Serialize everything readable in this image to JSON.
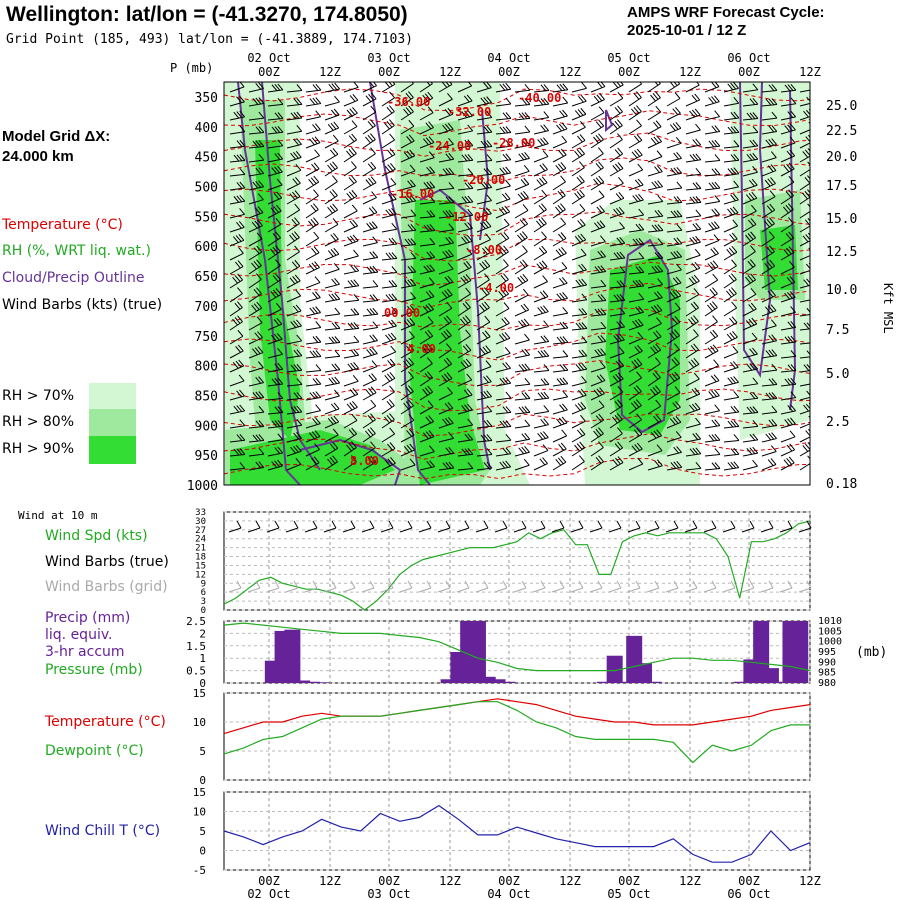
{
  "header": {
    "title": "Wellington:  lat/lon = (-41.3270, 174.8050)",
    "grid_point": "Grid Point (185, 493) lat/lon = (-41.3889, 174.7103)",
    "cycle_line1": "AMPS WRF Forecast Cycle:",
    "cycle_line2": "2025-10-01 / 12  Z"
  },
  "legend": {
    "model_grid_label": "Model Grid ΔX:",
    "model_grid_value": " 24.000 km",
    "temperature": "Temperature (°C)",
    "rh": "RH (%, WRT liq. wat.)",
    "cloud": "Cloud/Precip Outline",
    "wind_barbs": "Wind Barbs (kts) (true)",
    "rh70": "RH > 70%",
    "rh80": "RH > 80%",
    "rh90": "RH > 90%"
  },
  "time_axis": {
    "hours": [
      "00Z",
      "12Z",
      "00Z",
      "12Z",
      "00Z",
      "12Z",
      "00Z",
      "12Z",
      "00Z",
      "12Z"
    ],
    "dates": [
      "02 Oct",
      "03 Oct",
      "04 Oct",
      "05 Oct",
      "06 Oct"
    ]
  },
  "panels": {
    "p_label": "P (mb)",
    "kft_label": "Kft MSL",
    "wind10_title": "Wind at 10 m",
    "wind_spd": "Wind Spd (kts)",
    "wind_barbs_true": "Wind Barbs (true)",
    "wind_barbs_grid": "Wind Barbs (grid)",
    "precip_1": "Precip (mm)",
    "precip_2": "liq. equiv.",
    "precip_3": "3-hr accum",
    "pressure": "Pressure (mb)",
    "mb_unit": "(mb)",
    "temperature": "Temperature (°C)",
    "dewpoint": "Dewpoint (°C)",
    "wind_chill": "Wind Chill T (°C)"
  },
  "colors": {
    "rh70": "#d2f7d2",
    "rh80": "#9ee99e",
    "rh90": "#33dd33",
    "temp": "#dd0000",
    "cloud": "#663399",
    "green": "#22aa22",
    "precip": "#662299",
    "chill": "#2222aa",
    "grey": "#aaaaaa"
  },
  "chart_data": [
    {
      "type": "heatmap",
      "title": "Time-height cross section",
      "ylabel": "P (mb)",
      "y_ticks": [
        350,
        400,
        450,
        500,
        550,
        600,
        650,
        700,
        750,
        800,
        850,
        900,
        950,
        1000
      ],
      "y_right_label": "Kft MSL",
      "y_right_ticks": [
        "25.0",
        "22.5",
        "20.0",
        "17.5",
        "15.0",
        "12.5",
        "10.0",
        "7.5",
        "5.0",
        "2.5",
        "0.18"
      ],
      "isotherm_labels": [
        "-36.00",
        "-32.00",
        "-24.00",
        "-28.00",
        "-20.00",
        "-16.00",
        "-12.00",
        "-8.00",
        "-4.00",
        "00.00",
        "4.00",
        "8.00",
        "-40.00"
      ]
    },
    {
      "type": "line",
      "title": "Wind at 10 m",
      "ylabel": "Wind Spd (kts)",
      "y_ticks": [
        "33",
        "30",
        "27",
        "24",
        "21",
        "18",
        "15",
        "12",
        "9",
        "6",
        "3",
        "0"
      ],
      "ylim": [
        0,
        33
      ],
      "x_hours": [
        0,
        6,
        12,
        18,
        24,
        30,
        36,
        42,
        48,
        54,
        60,
        66,
        72,
        78,
        84,
        90,
        96,
        102,
        108,
        114,
        120,
        126,
        132,
        138,
        144,
        150,
        156,
        162,
        168,
        174,
        180,
        186,
        192,
        198,
        204,
        210,
        216,
        222,
        228,
        234,
        240,
        246,
        252,
        258,
        264,
        270,
        276,
        282,
        288,
        294,
        300
      ],
      "values": [
        2,
        4,
        7,
        10,
        11,
        9,
        8,
        7,
        7,
        6,
        5,
        3,
        0,
        3,
        7,
        12,
        15,
        17,
        18,
        19,
        20,
        21,
        21,
        21,
        22,
        23,
        26,
        24,
        26,
        27,
        22,
        22,
        12,
        12,
        23,
        25,
        26,
        25,
        26,
        26,
        26,
        26,
        24,
        18,
        4,
        23,
        23,
        24,
        26,
        29,
        30
      ]
    },
    {
      "type": "bar",
      "title": "Precip (mm) liq. equiv. 3-hr accum",
      "ylim": [
        0,
        2.5
      ],
      "y_ticks": [
        "2.5",
        "2",
        "1.5",
        "1",
        "0.5",
        "0"
      ],
      "x_hours": [
        15,
        18,
        21,
        24,
        27,
        30,
        69,
        72,
        75,
        78,
        81,
        84,
        87,
        117,
        120,
        123,
        126,
        129,
        132,
        159,
        162,
        165,
        168,
        171,
        174,
        177
      ],
      "values": [
        0.9,
        2.1,
        2.15,
        0.1,
        0.05,
        0.03,
        0.15,
        1.25,
        2.5,
        2.5,
        0.25,
        0.15,
        0.05,
        0.05,
        1.1,
        0.05,
        1.9,
        0.8,
        0.05,
        0.05,
        0.95,
        2.5,
        0.6,
        0.05,
        2.5,
        2.5
      ]
    },
    {
      "type": "line",
      "title": "Pressure (mb)",
      "y_ticks_right": [
        "1010",
        "1005",
        "1000",
        "995",
        "990",
        "985",
        "980"
      ],
      "ylim": [
        980,
        1010
      ],
      "x_hours": [
        0,
        6,
        12,
        18,
        24,
        30,
        36,
        42,
        48,
        54,
        60,
        66,
        72,
        78,
        84,
        90,
        96,
        102,
        108,
        114,
        120,
        126,
        132,
        138,
        144,
        150,
        156,
        162,
        168,
        174,
        180
      ],
      "values": [
        1008,
        1009,
        1008,
        1007,
        1006,
        1005,
        1004,
        1004,
        1004,
        1003,
        1002,
        1000,
        996,
        992,
        990,
        987,
        986,
        986,
        986,
        986,
        986,
        988,
        990,
        992,
        992,
        991,
        991,
        990,
        989,
        988,
        986
      ]
    },
    {
      "type": "line",
      "title": "Temperature / Dewpoint",
      "y_ticks": [
        "15",
        "10",
        "5",
        "0"
      ],
      "ylim": [
        0,
        15
      ],
      "x_hours": [
        0,
        6,
        12,
        18,
        24,
        30,
        36,
        42,
        48,
        54,
        60,
        66,
        72,
        78,
        84,
        90,
        96,
        102,
        108,
        114,
        120,
        126,
        132,
        138,
        144,
        150,
        156,
        162,
        168,
        174,
        180
      ],
      "series": [
        {
          "name": "Temperature",
          "values": [
            8,
            9,
            10,
            10,
            11,
            11.5,
            11,
            11,
            11,
            11.5,
            12,
            12.5,
            13,
            13.5,
            14,
            13.5,
            13,
            12,
            11,
            10.5,
            10,
            10,
            9.5,
            9.5,
            9.5,
            10,
            10.5,
            11,
            12,
            12.5,
            13
          ]
        },
        {
          "name": "Dewpoint",
          "values": [
            4.5,
            5.5,
            7,
            7.5,
            9,
            10.5,
            11,
            11,
            11,
            11.5,
            12,
            12.5,
            13,
            13.5,
            13.5,
            12,
            10,
            9,
            7.5,
            7,
            7,
            7,
            7,
            6.5,
            3,
            6,
            5,
            6,
            8.5,
            9.5,
            9.5
          ]
        }
      ]
    },
    {
      "type": "line",
      "title": "Wind Chill T (°C)",
      "y_ticks": [
        "15",
        "10",
        "5",
        "0",
        "-5"
      ],
      "ylim": [
        -5,
        15
      ],
      "x_hours": [
        0,
        6,
        12,
        18,
        24,
        30,
        36,
        42,
        48,
        54,
        60,
        66,
        72,
        78,
        84,
        90,
        96,
        102,
        108,
        114,
        120,
        126,
        132,
        138,
        144,
        150,
        156,
        162,
        168,
        174,
        180
      ],
      "values": [
        5,
        3.5,
        1.5,
        3.5,
        5,
        8,
        6,
        5,
        9.5,
        7.5,
        8.5,
        11.5,
        8,
        4,
        4,
        6,
        4.5,
        3,
        2,
        1,
        1,
        1,
        1,
        3,
        -1,
        -3,
        -3,
        -1,
        5,
        0,
        2
      ]
    }
  ]
}
